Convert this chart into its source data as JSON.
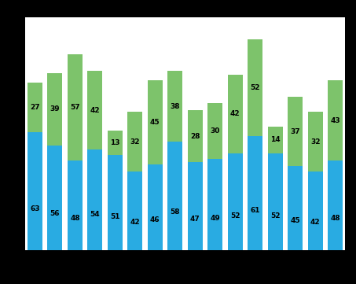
{
  "blue_values": [
    63,
    56,
    48,
    54,
    51,
    42,
    46,
    58,
    47,
    49,
    52,
    61,
    52,
    45,
    42,
    48
  ],
  "green_values": [
    27,
    39,
    57,
    42,
    13,
    32,
    45,
    38,
    28,
    30,
    42,
    52,
    14,
    37,
    32,
    43
  ],
  "blue_color": "#29abe2",
  "green_color": "#7dc36b",
  "outer_bg_color": "#000000",
  "plot_bg_color": "#ffffff",
  "grid_color": "#555555",
  "bar_width": 0.75,
  "ylim": [
    0,
    125
  ],
  "n_bars": 16,
  "label_fontsize": 6.5
}
